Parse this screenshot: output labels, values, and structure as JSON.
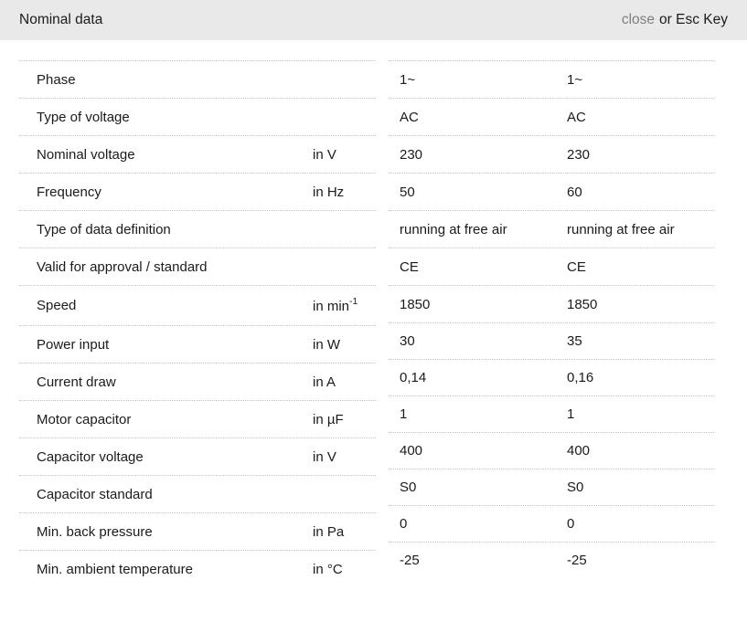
{
  "header": {
    "title": "Nominal data",
    "close_label": "close",
    "esc_label": "or Esc Key"
  },
  "table": {
    "rows": [
      {
        "label": "Phase",
        "unit": "",
        "values": [
          "1~",
          "1~"
        ]
      },
      {
        "label": "Type of voltage",
        "unit": "",
        "values": [
          "AC",
          "AC"
        ]
      },
      {
        "label": "Nominal voltage",
        "unit": "in V",
        "values": [
          "230",
          "230"
        ]
      },
      {
        "label": "Frequency",
        "unit": "in Hz",
        "values": [
          "50",
          "60"
        ]
      },
      {
        "label": "Type of data definition",
        "unit": "",
        "values": [
          "running at free air",
          "running at free air"
        ]
      },
      {
        "label": "Valid for approval / standard",
        "unit": "",
        "values": [
          "CE",
          "CE"
        ]
      },
      {
        "label": "Speed",
        "unit": "in min",
        "unit_sup": "-1",
        "values": [
          "1850",
          "1850"
        ]
      },
      {
        "label": "Power input",
        "unit": "in W",
        "values": [
          "30",
          "35"
        ]
      },
      {
        "label": "Current draw",
        "unit": "in A",
        "values": [
          "0,14",
          "0,16"
        ]
      },
      {
        "label": "Motor capacitor",
        "unit": "in µF",
        "values": [
          "1",
          "1"
        ]
      },
      {
        "label": "Capacitor voltage",
        "unit": "in V",
        "values": [
          "400",
          "400"
        ]
      },
      {
        "label": "Capacitor standard",
        "unit": "",
        "values": [
          "S0",
          "S0"
        ]
      },
      {
        "label": "Min. back pressure",
        "unit": "in Pa",
        "values": [
          "0",
          "0"
        ]
      },
      {
        "label": "Min. ambient temperature",
        "unit": "in °C",
        "values": [
          "-25",
          "-25"
        ]
      }
    ]
  },
  "colors": {
    "header_bg": "#e9e9e9",
    "divider": "#c4c4c4",
    "text": "#1b1b1b",
    "close": "#7f7f7f"
  }
}
